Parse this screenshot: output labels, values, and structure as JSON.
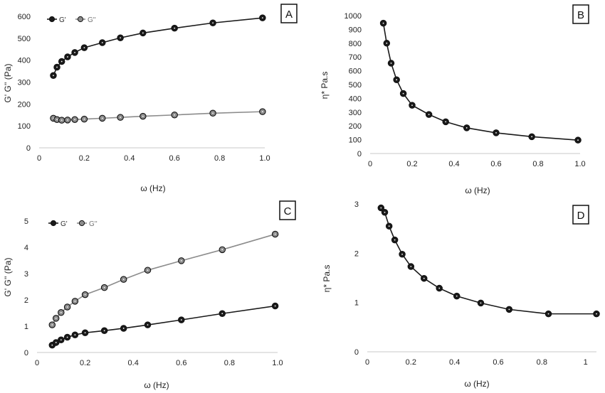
{
  "chart_data": [
    {
      "panel": "A",
      "type": "line",
      "xlabel": "ω (Hz)",
      "ylabel": "G' G'' (Pa)",
      "xlim": [
        0,
        1.0
      ],
      "ylim": [
        0,
        600
      ],
      "xticks": [
        "0",
        "0.2",
        "0.4",
        "0.6",
        "0.8",
        "1.0"
      ],
      "yticks": [
        "0",
        "100",
        "200",
        "300",
        "400",
        "500",
        "600"
      ],
      "legend": "top-left",
      "series": [
        {
          "name": "G'",
          "color": "#1a1a1a",
          "x": [
            0.063,
            0.079,
            0.1,
            0.126,
            0.158,
            0.2,
            0.28,
            0.36,
            0.46,
            0.6,
            0.77,
            0.99
          ],
          "y": [
            330,
            368,
            394,
            415,
            435,
            457,
            480,
            502,
            524,
            546,
            570,
            593
          ]
        },
        {
          "name": "G''",
          "color": "#8c8c8c",
          "x": [
            0.063,
            0.079,
            0.1,
            0.126,
            0.158,
            0.2,
            0.28,
            0.36,
            0.46,
            0.6,
            0.77,
            0.99
          ],
          "y": [
            135,
            129,
            126,
            127,
            129,
            131,
            135,
            139,
            144,
            150,
            158,
            165
          ]
        }
      ]
    },
    {
      "panel": "B",
      "type": "line",
      "xlabel": "ω (Hz)",
      "ylabel": "η* Pa.s",
      "xlim": [
        0,
        1.0
      ],
      "ylim": [
        0,
        1000
      ],
      "xticks": [
        "0",
        "0.2",
        "0.4",
        "0.6",
        "0.8",
        "1.0"
      ],
      "yticks": [
        "0",
        "100",
        "200",
        "300",
        "400",
        "500",
        "600",
        "700",
        "800",
        "900",
        "1000"
      ],
      "series": [
        {
          "color": "#1a1a1a",
          "x": [
            0.063,
            0.079,
            0.1,
            0.126,
            0.158,
            0.2,
            0.28,
            0.36,
            0.46,
            0.6,
            0.77,
            0.99
          ],
          "y": [
            945,
            800,
            655,
            535,
            435,
            350,
            283,
            230,
            186,
            150,
            122,
            97
          ]
        }
      ]
    },
    {
      "panel": "C",
      "type": "line",
      "xlabel": "ω (Hz)",
      "ylabel": "G' G'' (Pa)",
      "xlim": [
        0,
        1.0
      ],
      "ylim": [
        0,
        5
      ],
      "xticks": [
        "0",
        "0.2",
        "0.4",
        "0.6",
        "0.8",
        "1.0"
      ],
      "yticks": [
        "0",
        "1",
        "2",
        "3",
        "4",
        "5"
      ],
      "legend": "top-left",
      "series": [
        {
          "name": "G'",
          "color": "#1a1a1a",
          "x": [
            0.063,
            0.079,
            0.1,
            0.126,
            0.158,
            0.2,
            0.28,
            0.36,
            0.46,
            0.6,
            0.77,
            0.99
          ],
          "y": [
            0.28,
            0.38,
            0.48,
            0.58,
            0.67,
            0.75,
            0.83,
            0.92,
            1.05,
            1.24,
            1.48,
            1.77
          ]
        },
        {
          "name": "G''",
          "color": "#8c8c8c",
          "x": [
            0.063,
            0.079,
            0.1,
            0.126,
            0.158,
            0.2,
            0.28,
            0.36,
            0.46,
            0.6,
            0.77,
            0.99
          ],
          "y": [
            1.05,
            1.3,
            1.52,
            1.73,
            1.95,
            2.2,
            2.47,
            2.78,
            3.13,
            3.49,
            3.91,
            4.5
          ]
        }
      ]
    },
    {
      "panel": "D",
      "type": "line",
      "xlabel": "ω (Hz)",
      "ylabel": "η* Pa.s",
      "xlim": [
        0,
        1.05
      ],
      "ylim": [
        0,
        3
      ],
      "xticks": [
        "0",
        "0.2",
        "0.4",
        "0.6",
        "0.8",
        "1"
      ],
      "yticks": [
        "0",
        "1",
        "2",
        "3"
      ],
      "series": [
        {
          "color": "#1a1a1a",
          "x": [
            0.063,
            0.08,
            0.1,
            0.126,
            0.16,
            0.2,
            0.26,
            0.33,
            0.41,
            0.52,
            0.65,
            0.83,
            1.05
          ],
          "y": [
            2.92,
            2.83,
            2.55,
            2.27,
            1.98,
            1.73,
            1.49,
            1.29,
            1.13,
            0.99,
            0.86,
            0.77,
            0.77
          ]
        }
      ]
    }
  ]
}
